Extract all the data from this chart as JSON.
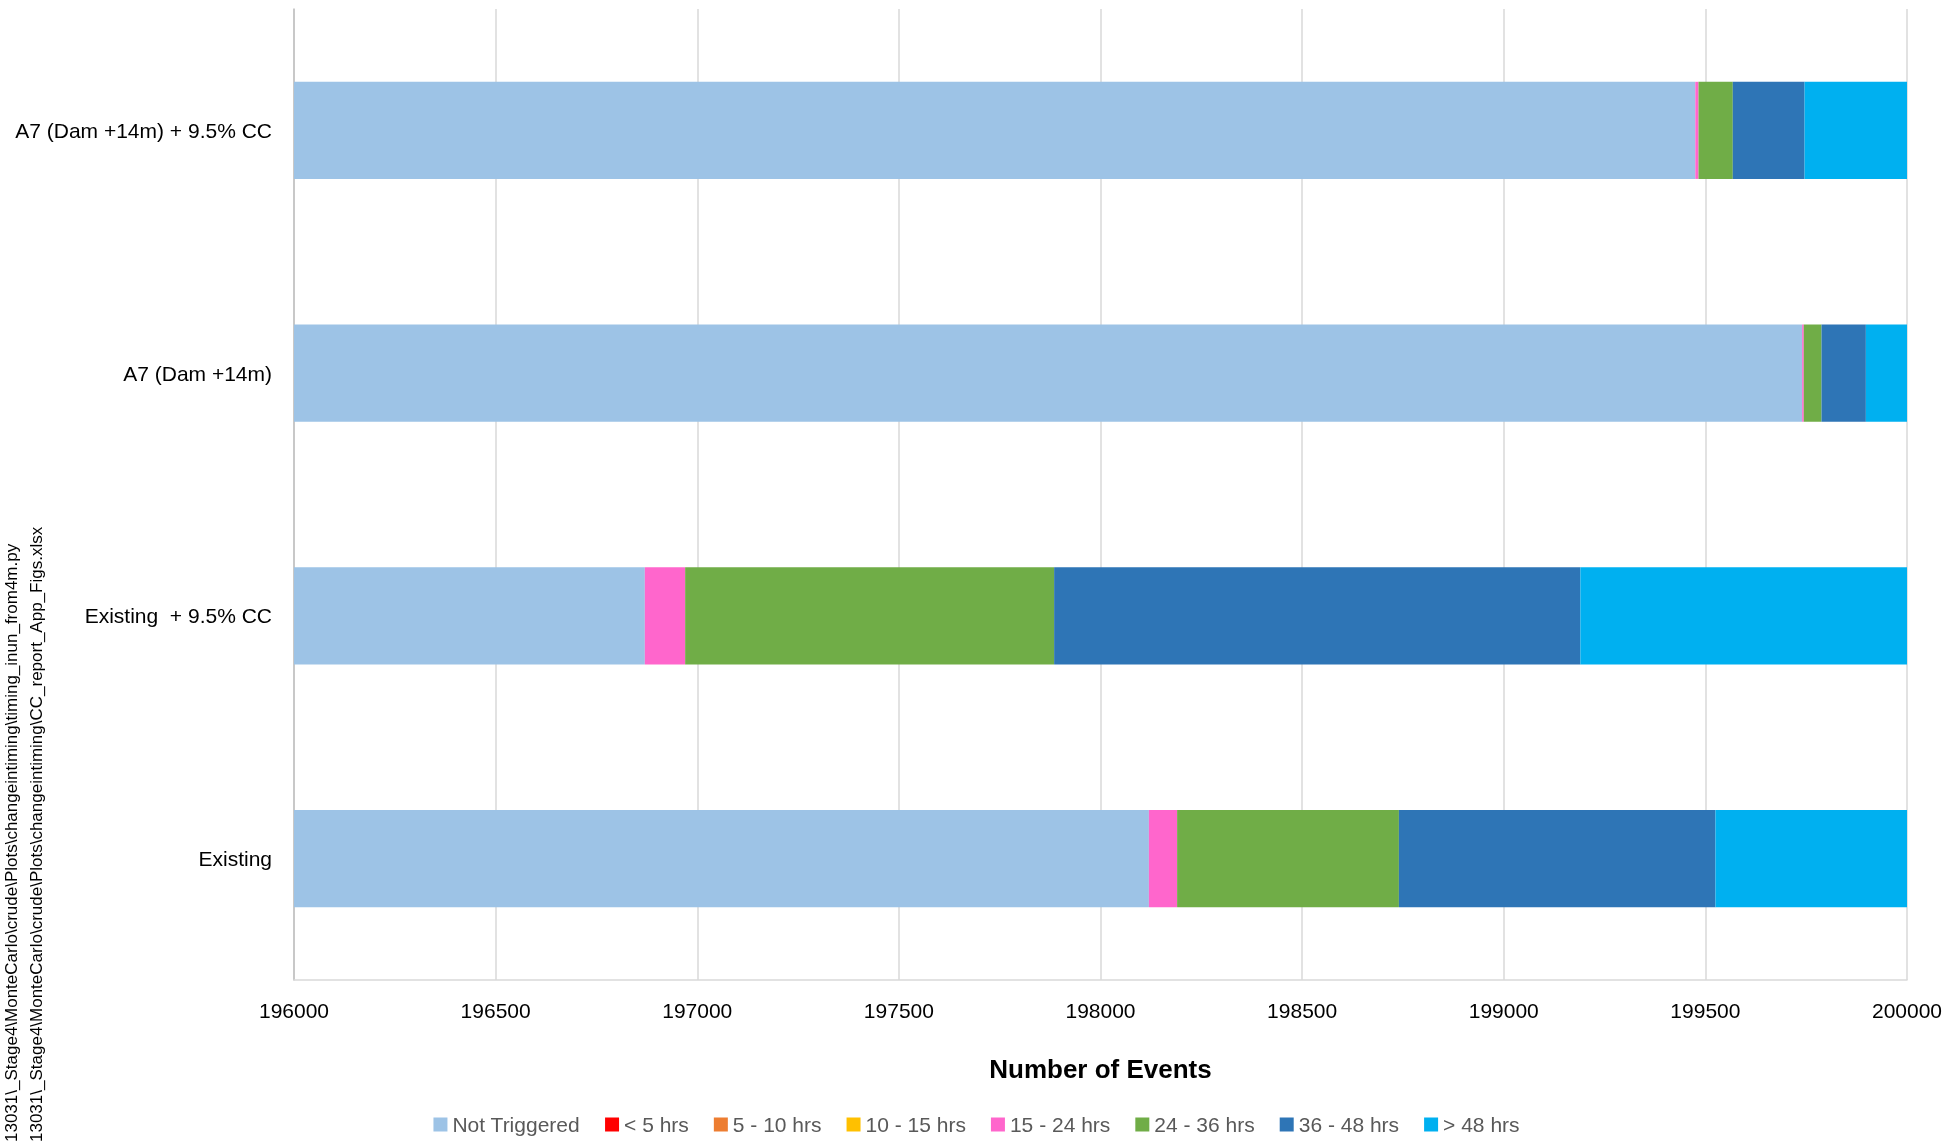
{
  "chart_data": {
    "type": "bar",
    "orientation": "horizontal",
    "stacked": true,
    "categories": [
      "A7 (Dam +14m) + 9.5% CC",
      "A7 (Dam +14m)",
      "Existing  + 9.5% CC",
      "Existing"
    ],
    "series": [
      {
        "name": "Not Triggered",
        "color": "#9dc3e6",
        "values": [
          199475,
          199740,
          196870,
          198120
        ]
      },
      {
        "name": "< 5 hrs",
        "color": "#ff0000",
        "values": [
          null,
          null,
          null,
          null
        ]
      },
      {
        "name": "5 - 10 hrs",
        "color": "#ed7d31",
        "values": [
          null,
          null,
          null,
          null
        ]
      },
      {
        "name": "10 - 15 hrs",
        "color": "#ffc000",
        "values": [
          null,
          null,
          null,
          null
        ]
      },
      {
        "name": "15 - 24 hrs",
        "color": "#ff66cc",
        "base": [
          199475,
          199740,
          196870,
          198120
        ],
        "values": [
          8,
          4,
          100,
          70
        ]
      },
      {
        "name": "24 - 36 hrs",
        "color": "#70ad47",
        "base": [
          199483,
          199744,
          196970,
          198190
        ],
        "values": [
          85,
          44,
          915,
          550
        ]
      },
      {
        "name": "36 - 48 hrs",
        "color": "#2e75b6",
        "base": [
          199568,
          199788,
          197885,
          198740
        ],
        "values": [
          178,
          110,
          1305,
          785
        ]
      },
      {
        "name": "> 48 hrs",
        "color": "#00b0f0",
        "base": [
          199746,
          199898,
          199190,
          199525
        ],
        "values": [
          254,
          102,
          810,
          475
        ]
      }
    ],
    "xlim": [
      196000,
      200000
    ],
    "xticks": [
      196000,
      196500,
      197000,
      197500,
      198000,
      198500,
      199000,
      199500,
      200000
    ],
    "xlabel": "Number of Events",
    "grid": "x",
    "legend": "bottom",
    "annotations": [
      "13031\\_Stage4\\MonteCarlo\\crude\\Plots\\changeintiming\\timing_inun_from4m.py",
      "13031\\_Stage4\\MonteCarlo\\crude\\Plots\\changeintiming\\CC_report_App_Figs.xlsx"
    ]
  }
}
